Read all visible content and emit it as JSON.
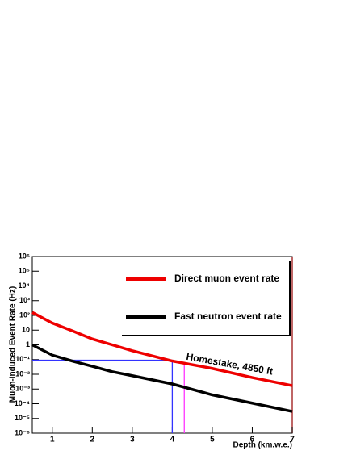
{
  "chart_data": {
    "type": "line",
    "xlabel": "Depth (km.w.e.)",
    "ylabel": "Muon-Induced Event Rate (Hz)",
    "log_y": true,
    "x": [
      0.5,
      1,
      1.5,
      2,
      2.5,
      3,
      4,
      5,
      6,
      7
    ],
    "series": [
      {
        "name": "Direct muon event rate",
        "color": "#ee0000",
        "values": [
          160,
          30,
          9,
          2.5,
          1,
          0.4,
          0.08,
          0.025,
          0.006,
          0.0017
        ]
      },
      {
        "name": "Fast neutron event rate",
        "color": "#000000",
        "values": [
          1,
          0.2,
          0.08,
          0.035,
          0.015,
          0.008,
          0.0022,
          0.0004,
          0.00011,
          3e-05
        ]
      }
    ],
    "xlim": [
      0.5,
      7
    ],
    "xticks": [
      1,
      2,
      3,
      4,
      5,
      6,
      7
    ],
    "ylim": [
      1e-06,
      1000000
    ],
    "yticks": [
      {
        "value": 1e-06,
        "label": "10⁻⁶"
      },
      {
        "value": 1e-05,
        "label": "10⁻⁵"
      },
      {
        "value": 0.0001,
        "label": "10⁻⁴"
      },
      {
        "value": 0.001,
        "label": "10⁻³"
      },
      {
        "value": 0.01,
        "label": "10⁻²"
      },
      {
        "value": 0.1,
        "label": "10⁻¹"
      },
      1,
      10,
      {
        "value": 100,
        "label": "10²"
      },
      {
        "value": 1000,
        "label": "10³"
      },
      {
        "value": 10000,
        "label": "10⁴"
      },
      {
        "value": 100000,
        "label": "10⁵"
      },
      {
        "value": 1000000,
        "label": "10⁶"
      }
    ],
    "reference_lines": [
      {
        "color": "#3333ff",
        "x": 4,
        "y": 0.09,
        "horizontal": true
      },
      {
        "color": "#ff33ff",
        "x": 4.3,
        "y": 0.07,
        "horizontal": false
      }
    ],
    "annotation": {
      "text": "Homestake, 4850 ft",
      "x": 4.35,
      "y": 0.07
    }
  }
}
